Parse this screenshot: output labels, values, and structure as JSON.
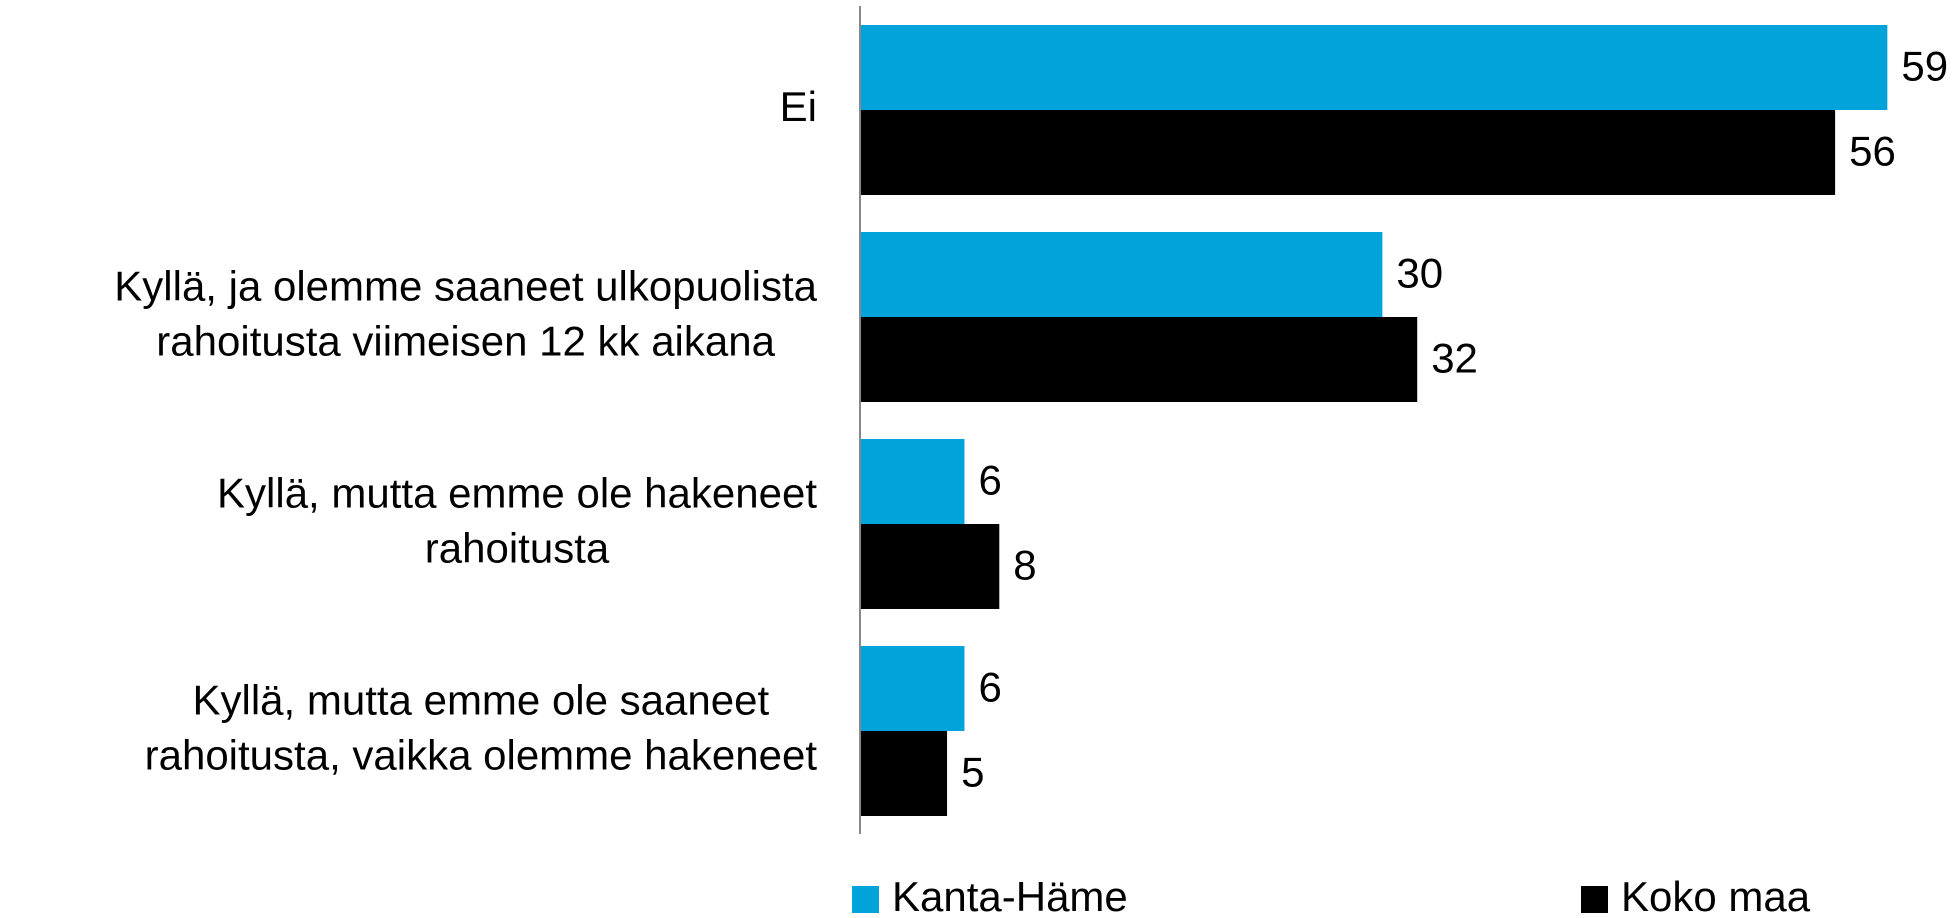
{
  "chart_data": {
    "type": "hbar",
    "categories": [
      [
        "Ei"
      ],
      [
        "Kyllä, ja olemme saaneet ulkopuolista",
        "rahoitusta viimeisen 12 kk aikana"
      ],
      [
        "Kyllä, mutta emme ole hakeneet",
        "rahoitusta"
      ],
      [
        "Kyllä, mutta emme ole saaneet",
        "rahoitusta, vaikka olemme hakeneet"
      ]
    ],
    "series": [
      {
        "name": "Kanta-Häme",
        "color": "#00a3da",
        "values": [
          59,
          30,
          6,
          6
        ]
      },
      {
        "name": "Koko maa",
        "color": "#000000",
        "values": [
          56,
          32,
          8,
          5
        ]
      }
    ],
    "xlim": [
      0,
      63
    ],
    "legend": "bottom"
  }
}
